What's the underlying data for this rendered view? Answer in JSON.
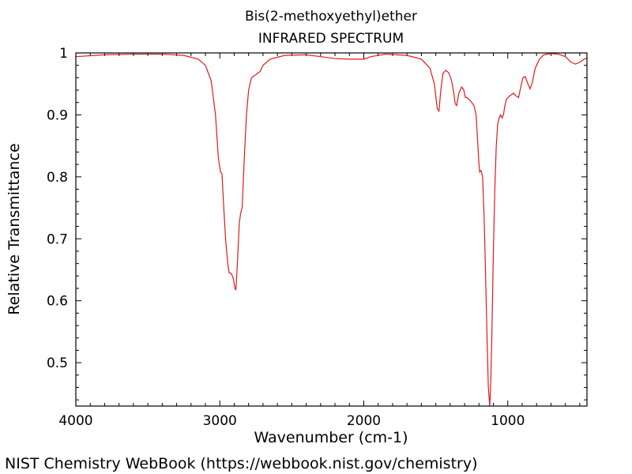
{
  "chart_data": {
    "type": "line",
    "title": "Bis(2-methoxyethyl)ether",
    "subtitle": "INFRARED SPECTRUM",
    "xlabel": "Wavenumber (cm-1)",
    "ylabel": "Relative Transmittance",
    "xlim": [
      4000,
      450
    ],
    "ylim": [
      0.43,
      1.0
    ],
    "x_ticks": [
      4000,
      3000,
      2000,
      1000
    ],
    "y_ticks": [
      0.5,
      0.6,
      0.7,
      0.8,
      0.9,
      1
    ],
    "x_tick_labels": [
      "4000",
      "3000",
      "2000",
      "1000"
    ],
    "y_tick_labels": [
      "0.5",
      "0.6",
      "0.7",
      "0.8",
      "0.9",
      "1"
    ],
    "grid": false,
    "series": [
      {
        "color": "#e0191b",
        "points": [
          [
            4000,
            0.994
          ],
          [
            3800,
            0.997
          ],
          [
            3600,
            0.998
          ],
          [
            3400,
            0.998
          ],
          [
            3250,
            0.996
          ],
          [
            3150,
            0.99
          ],
          [
            3100,
            0.98
          ],
          [
            3060,
            0.955
          ],
          [
            3030,
            0.9
          ],
          [
            3010,
            0.83
          ],
          [
            2995,
            0.808
          ],
          [
            2985,
            0.805
          ],
          [
            2975,
            0.76
          ],
          [
            2960,
            0.7
          ],
          [
            2945,
            0.66
          ],
          [
            2935,
            0.645
          ],
          [
            2920,
            0.644
          ],
          [
            2905,
            0.635
          ],
          [
            2895,
            0.62
          ],
          [
            2888,
            0.618
          ],
          [
            2878,
            0.66
          ],
          [
            2865,
            0.725
          ],
          [
            2855,
            0.742
          ],
          [
            2845,
            0.75
          ],
          [
            2830,
            0.83
          ],
          [
            2815,
            0.9
          ],
          [
            2800,
            0.94
          ],
          [
            2780,
            0.96
          ],
          [
            2750,
            0.965
          ],
          [
            2720,
            0.97
          ],
          [
            2700,
            0.98
          ],
          [
            2650,
            0.99
          ],
          [
            2550,
            0.996
          ],
          [
            2400,
            0.997
          ],
          [
            2300,
            0.994
          ],
          [
            2200,
            0.991
          ],
          [
            2100,
            0.99
          ],
          [
            2000,
            0.99
          ],
          [
            1950,
            0.994
          ],
          [
            1850,
            0.998
          ],
          [
            1700,
            0.996
          ],
          [
            1600,
            0.99
          ],
          [
            1540,
            0.975
          ],
          [
            1510,
            0.95
          ],
          [
            1490,
            0.91
          ],
          [
            1478,
            0.906
          ],
          [
            1465,
            0.94
          ],
          [
            1450,
            0.967
          ],
          [
            1430,
            0.972
          ],
          [
            1410,
            0.968
          ],
          [
            1390,
            0.955
          ],
          [
            1375,
            0.935
          ],
          [
            1365,
            0.918
          ],
          [
            1355,
            0.915
          ],
          [
            1340,
            0.935
          ],
          [
            1320,
            0.945
          ],
          [
            1305,
            0.94
          ],
          [
            1295,
            0.928
          ],
          [
            1285,
            0.928
          ],
          [
            1270,
            0.925
          ],
          [
            1250,
            0.92
          ],
          [
            1235,
            0.915
          ],
          [
            1220,
            0.9
          ],
          [
            1210,
            0.86
          ],
          [
            1200,
            0.82
          ],
          [
            1195,
            0.808
          ],
          [
            1190,
            0.81
          ],
          [
            1185,
            0.81
          ],
          [
            1175,
            0.8
          ],
          [
            1165,
            0.74
          ],
          [
            1155,
            0.65
          ],
          [
            1145,
            0.55
          ],
          [
            1135,
            0.46
          ],
          [
            1125,
            0.43
          ],
          [
            1118,
            0.47
          ],
          [
            1110,
            0.55
          ],
          [
            1100,
            0.68
          ],
          [
            1090,
            0.78
          ],
          [
            1080,
            0.85
          ],
          [
            1070,
            0.885
          ],
          [
            1060,
            0.895
          ],
          [
            1050,
            0.9
          ],
          [
            1040,
            0.895
          ],
          [
            1030,
            0.9
          ],
          [
            1020,
            0.915
          ],
          [
            1010,
            0.925
          ],
          [
            990,
            0.93
          ],
          [
            960,
            0.935
          ],
          [
            940,
            0.93
          ],
          [
            925,
            0.928
          ],
          [
            910,
            0.945
          ],
          [
            895,
            0.96
          ],
          [
            880,
            0.962
          ],
          [
            860,
            0.95
          ],
          [
            845,
            0.942
          ],
          [
            830,
            0.952
          ],
          [
            810,
            0.975
          ],
          [
            780,
            0.99
          ],
          [
            750,
            0.997
          ],
          [
            700,
            0.999
          ],
          [
            650,
            0.998
          ],
          [
            600,
            0.994
          ],
          [
            560,
            0.985
          ],
          [
            530,
            0.982
          ],
          [
            500,
            0.985
          ],
          [
            470,
            0.99
          ],
          [
            450,
            0.992
          ]
        ]
      }
    ]
  },
  "footer": "NIST Chemistry WebBook (https://webbook.nist.gov/chemistry)"
}
